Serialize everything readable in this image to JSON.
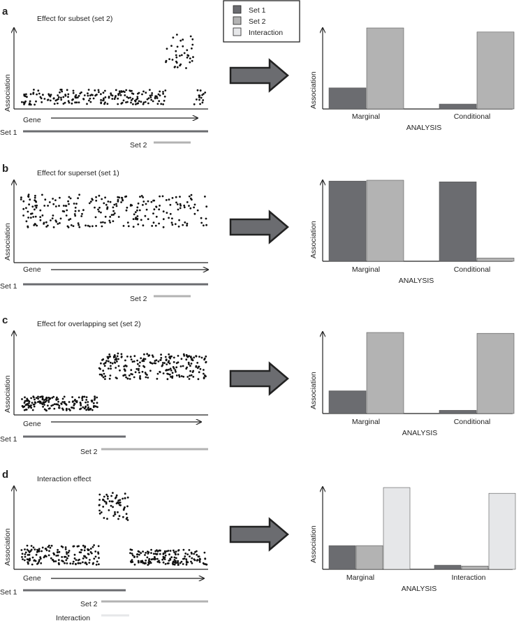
{
  "legend": {
    "entries": [
      {
        "label": "Set 1",
        "color": "#6b6c70"
      },
      {
        "label": "Set 2",
        "color": "#b3b3b3"
      },
      {
        "label": "Interaction",
        "color": "#e6e7e9"
      }
    ]
  },
  "colors": {
    "set1": "#6b6c70",
    "set2": "#b3b3b3",
    "interaction": "#e6e7e9",
    "arrow": "#6b6c70"
  },
  "chart_data": [
    {
      "panel": "a",
      "scatter": {
        "type": "scatter",
        "title": "Effect for subset (set 2)",
        "ylabel": "Association",
        "xlabel": "Gene",
        "groups": [
          {
            "set": "background",
            "x_range": [
              0,
              0.78
            ],
            "y_range": [
              0.02,
              0.22
            ]
          },
          {
            "set": "elevated",
            "x_range": [
              0.78,
              0.93
            ],
            "y_range": [
              0.5,
              0.95
            ]
          },
          {
            "set": "background",
            "x_range": [
              0.93,
              1.0
            ],
            "y_range": [
              0.02,
              0.22
            ]
          }
        ]
      },
      "sets": [
        {
          "label": "Set 1",
          "range": [
            0,
            1.0
          ],
          "color": "#6b6c70"
        },
        {
          "label": "Set 2",
          "range": [
            0.68,
            0.93
          ],
          "color": "#b3b3b3"
        }
      ],
      "bars": {
        "type": "bar",
        "ylabel": "Association",
        "xlabel": "ANALYSIS",
        "categories": [
          "Marginal",
          "Conditional"
        ],
        "ylim": [
          0,
          1
        ],
        "series": [
          {
            "name": "Set 1",
            "values": [
              0.26,
              0.06
            ]
          },
          {
            "name": "Set 2",
            "values": [
              1.0,
              0.95
            ]
          }
        ]
      }
    },
    {
      "panel": "b",
      "scatter": {
        "type": "scatter",
        "title": "Effect for superset (set 1)",
        "ylabel": "Association",
        "xlabel": "Gene",
        "groups": [
          {
            "set": "elevated",
            "x_range": [
              0,
              1.0
            ],
            "y_range": [
              0.42,
              0.85
            ]
          }
        ]
      },
      "sets": [
        {
          "label": "Set 1",
          "range": [
            0,
            1.0
          ],
          "color": "#6b6c70"
        },
        {
          "label": "Set 2",
          "range": [
            0.68,
            0.93
          ],
          "color": "#b3b3b3"
        }
      ],
      "bars": {
        "type": "bar",
        "ylabel": "Association",
        "xlabel": "ANALYSIS",
        "categories": [
          "Marginal",
          "Conditional"
        ],
        "ylim": [
          0,
          1
        ],
        "series": [
          {
            "name": "Set 1",
            "values": [
              0.99,
              0.98
            ]
          },
          {
            "name": "Set 2",
            "values": [
              1.0,
              0.04
            ]
          }
        ]
      }
    },
    {
      "panel": "c",
      "scatter": {
        "type": "scatter",
        "title": "Effect for overlapping set (set 2)",
        "ylabel": "Association",
        "xlabel": "Gene",
        "groups": [
          {
            "set": "background",
            "x_range": [
              0,
              0.42
            ],
            "y_range": [
              0.02,
              0.2
            ]
          },
          {
            "set": "elevated",
            "x_range": [
              0.42,
              1.0
            ],
            "y_range": [
              0.42,
              0.75
            ]
          }
        ]
      },
      "sets": [
        {
          "label": "Set 1",
          "range": [
            0,
            0.58
          ],
          "color": "#6b6c70"
        },
        {
          "label": "Set 2",
          "range": [
            0.42,
            1.0
          ],
          "color": "#b3b3b3"
        }
      ],
      "bars": {
        "type": "bar",
        "ylabel": "Association",
        "xlabel": "ANALYSIS",
        "categories": [
          "Marginal",
          "Conditional"
        ],
        "ylim": [
          0,
          1
        ],
        "series": [
          {
            "name": "Set 1",
            "values": [
              0.28,
              0.04
            ]
          },
          {
            "name": "Set 2",
            "values": [
              1.0,
              0.99
            ]
          }
        ]
      }
    },
    {
      "panel": "d",
      "scatter": {
        "type": "scatter",
        "title": "Interaction effect",
        "ylabel": "Association",
        "xlabel": "Gene",
        "groups": [
          {
            "set": "background",
            "x_range": [
              0,
              0.42
            ],
            "y_range": [
              0.02,
              0.28
            ]
          },
          {
            "set": "elevated",
            "x_range": [
              0.42,
              0.58
            ],
            "y_range": [
              0.58,
              0.95
            ]
          },
          {
            "set": "background",
            "x_range": [
              0.58,
              1.0
            ],
            "y_range": [
              0.02,
              0.22
            ]
          }
        ]
      },
      "sets": [
        {
          "label": "Set 1",
          "range": [
            0,
            0.58
          ],
          "color": "#6b6c70"
        },
        {
          "label": "Set 2",
          "range": [
            0.42,
            1.0
          ],
          "color": "#b3b3b3"
        },
        {
          "label": "Interaction",
          "range": [
            0.42,
            0.58
          ],
          "color": "#e6e7e9"
        }
      ],
      "bars": {
        "type": "bar",
        "ylabel": "Association",
        "xlabel": "ANALYSIS",
        "categories": [
          "Marginal",
          "Interaction"
        ],
        "ylim": [
          0,
          1
        ],
        "series": [
          {
            "name": "Set 1",
            "values": [
              0.29,
              0.05
            ]
          },
          {
            "name": "Set 2",
            "values": [
              0.29,
              0.04
            ]
          },
          {
            "name": "Interaction",
            "values": [
              1.0,
              0.93
            ]
          }
        ]
      }
    }
  ]
}
